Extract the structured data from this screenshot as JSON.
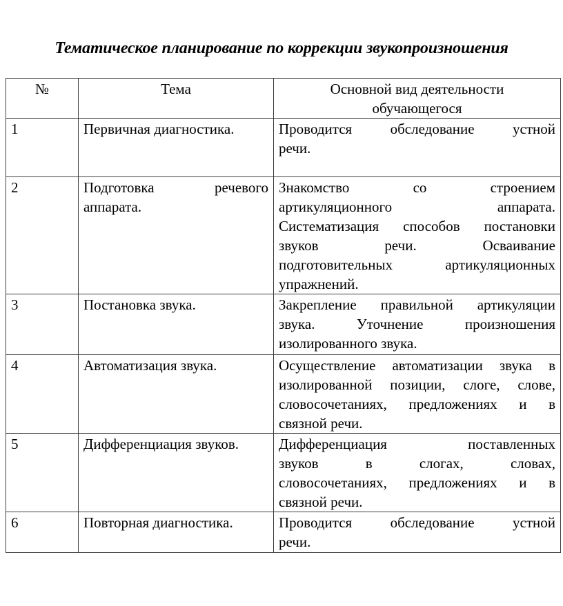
{
  "page": {
    "title": "Тематическое планирование по коррекции звукопроизношения"
  },
  "table": {
    "headers": {
      "number": "№",
      "topic": "Тема",
      "activity": "Основной вид деятельности\nобучающегося"
    },
    "rows": [
      {
        "num": "1",
        "topic": "Первичная диагностика.",
        "activity": "Проводится обследование устной\nречи."
      },
      {
        "num": "2",
        "topic": "Подготовка речевого\nаппарата.",
        "activity": "Знакомство со строением\nартикуляционного аппарата.\nСистематизация способов постановки\nзвуков речи. Осваивание\nподготовительных артикуляционных\nупражнений."
      },
      {
        "num": "3",
        "topic": "Постановка звука.",
        "activity": "Закрепление правильной артикуляции\nзвука. Уточнение произношения\nизолированного звука."
      },
      {
        "num": "4",
        "topic": "Автоматизация звука.",
        "activity": "Осуществление автоматизации звука в\nизолированной позиции, слоге, слове,\nсловосочетаниях, предложениях и в\nсвязной речи."
      },
      {
        "num": "5",
        "topic": "Дифференциация звуков.",
        "activity": "Дифференциация поставленных\nзвуков в слогах, словах,\nсловосочетаниях, предложениях и в\nсвязной речи."
      },
      {
        "num": "6",
        "topic": "Повторная диагностика.",
        "activity": "Проводится обследование устной\nречи."
      }
    ]
  }
}
